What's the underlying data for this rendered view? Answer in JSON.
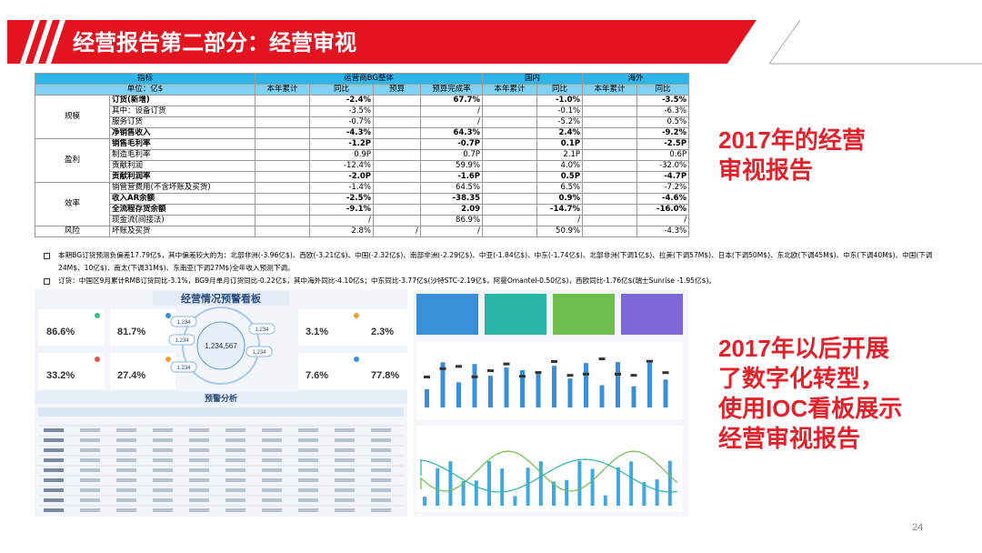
{
  "header": {
    "title": "经营报告第二部分：经营审视"
  },
  "table": {
    "head": {
      "indicator": "指标",
      "bg_overall": "运营商BG整体",
      "domestic": "国内",
      "overseas": "海外",
      "unit": "单位：亿$",
      "columns": [
        "本年累计",
        "同比",
        "预算",
        "预算完成率",
        "本年累计",
        "同比",
        "本年累计",
        "同比"
      ]
    },
    "groups": [
      {
        "name": "规模",
        "rows": [
          {
            "label": "订货(新增)",
            "bold": true,
            "cells": [
              null,
              "-2.4%",
              null,
              "67.7%",
              null,
              "-1.0%",
              null,
              "-3.5%"
            ]
          },
          {
            "label": "其中：设备订货",
            "cells": [
              null,
              "-3.5%",
              null,
              "/",
              null,
              "-0.1%",
              null,
              "-6.3%"
            ]
          },
          {
            "label": "服务订货",
            "cells": [
              null,
              "-0.7%",
              null,
              "/",
              null,
              "-5.2%",
              null,
              "0.5%"
            ]
          },
          {
            "label": "净销售收入",
            "bold": true,
            "cells": [
              null,
              "-4.3%",
              null,
              "64.3%",
              null,
              "2.4%",
              null,
              "-9.2%"
            ]
          }
        ]
      },
      {
        "name": "盈利",
        "rows": [
          {
            "label": "销售毛利率",
            "bold": true,
            "cells": [
              null,
              "-1.2P",
              null,
              "-0.7P",
              null,
              "0.1P",
              null,
              "-2.5P"
            ]
          },
          {
            "label": "制造毛利率",
            "cells": [
              null,
              "0.9P",
              null,
              "0.7P",
              null,
              "2.1P",
              null,
              "0.6P"
            ]
          },
          {
            "label": "贡献利润",
            "cells": [
              null,
              "-12.4%",
              null,
              "59.9%",
              null,
              "4.0%",
              null,
              "-32.0%"
            ]
          },
          {
            "label": "贡献利润率",
            "bold": true,
            "cells": [
              null,
              "-2.0P",
              null,
              "-1.6P",
              null,
              "0.5P",
              null,
              "-4.7P"
            ]
          }
        ]
      },
      {
        "name": "效率",
        "rows": [
          {
            "label": "销管营费用(不含坏账及买货)",
            "cells": [
              null,
              "-1.4%",
              null,
              "64.5%",
              null,
              "6.5%",
              null,
              "-7.2%"
            ]
          },
          {
            "label": "收入AR余额",
            "bold": true,
            "cells": [
              null,
              "-2.5%",
              null,
              "-38.35",
              null,
              "0.9%",
              null,
              "-4.6%"
            ]
          },
          {
            "label": "全流程存货余额",
            "bold": true,
            "cells": [
              null,
              "-9.1%",
              null,
              "2.09",
              null,
              "-14.7%",
              null,
              "-16.0%"
            ]
          },
          {
            "label": "现金流(间接法)",
            "cells": [
              null,
              "/",
              null,
              "86.9%",
              null,
              "/",
              null,
              "/"
            ]
          }
        ]
      },
      {
        "name": "风险",
        "rows": [
          {
            "label": "坏账及买货",
            "cells": [
              null,
              "2.8%",
              "/",
              "/",
              null,
              "50.9%",
              null,
              "-4.3%"
            ]
          }
        ]
      }
    ]
  },
  "notes": [
    "本期BG订货预测负偏差17.79亿$，其中偏差较大的为：北部非洲(-3.96亿$)、西欧(-3.21亿$)、中国(-2.32亿$)、南部非洲(-2.29亿$)、中亚(-1.84亿$)、中东(-1.74亿$)、北部非洲(下调1亿$)、拉美(下调57M$)、日本(下调50M$)、东北欧(下调45M$)、中东(下调40M$)、中国(下调24M$、10亿$)、南太(下调31M$)、东南亚(下调27M$)全年收入预测下调。",
    "订货：中国区9月累计RMB订货同比-3.1%，BG9月单月订货同比-0.22亿$，其中海外同比-4.10亿$；中东同比-3.77亿$(沙特STC-2.19亿$，阿曼Omantel-0.50亿$)，西欧同比-1.76亿$(瑞士Sunrise -1.95亿$)。"
  ],
  "dashboard": {
    "title": "经营情况预警看板",
    "kpis": [
      "86.6%",
      "81.7%",
      "3.1%",
      "2.3%",
      "33.2%",
      "27.4%",
      "7.6%",
      "77.8%"
    ],
    "center": "1,234,567",
    "badge": "1,234",
    "section": "预警分析"
  },
  "side_note_1": {
    "lines": [
      "2017年的经营",
      "审视报告"
    ]
  },
  "side_note_2": {
    "lines": [
      "2017年以后开展",
      "了数字化转型，",
      "使用IOC看板展示",
      "经营审视报告"
    ]
  },
  "page_number": "24"
}
